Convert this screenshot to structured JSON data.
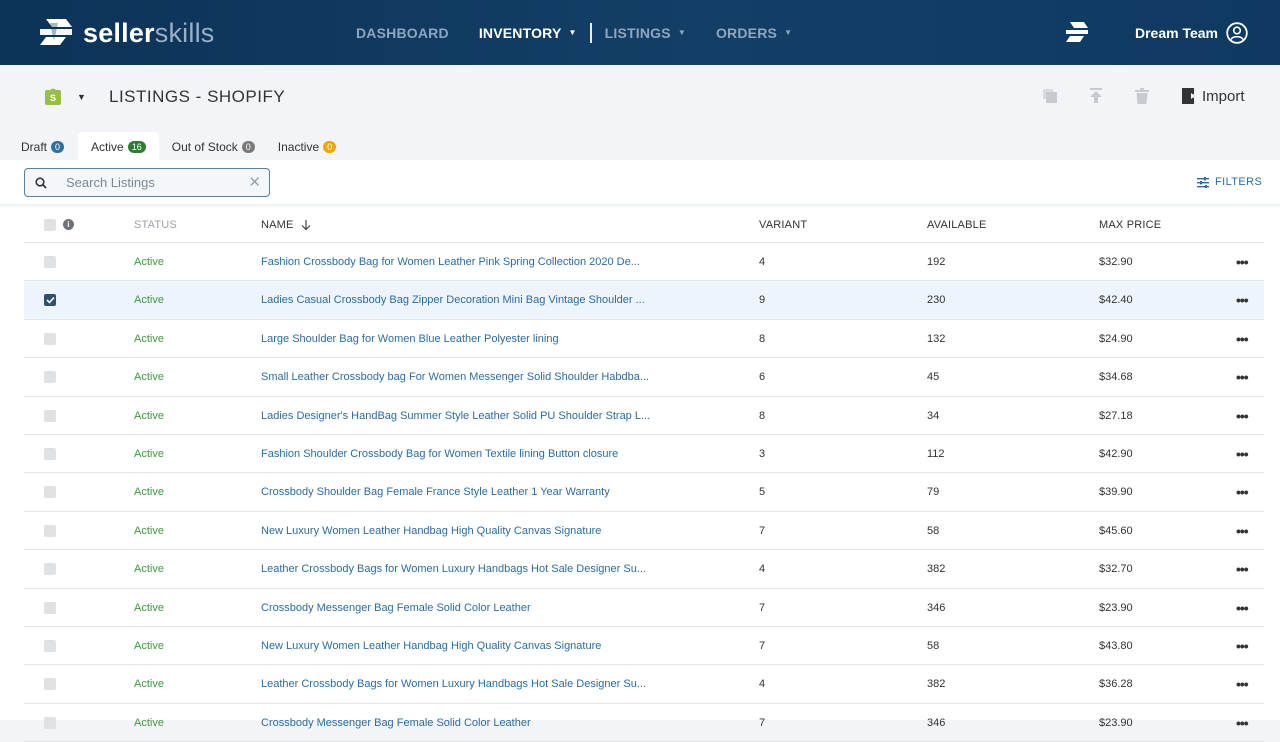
{
  "brand": {
    "name_bold": "seller",
    "name_light": "skills"
  },
  "nav": {
    "items": [
      {
        "label": "DASHBOARD",
        "dropdown": false,
        "active": false
      },
      {
        "label": "INVENTORY",
        "dropdown": true,
        "active": true
      },
      {
        "label": "LISTINGS",
        "dropdown": true,
        "active": false
      },
      {
        "label": "ORDERS",
        "dropdown": true,
        "active": false
      }
    ]
  },
  "user": {
    "name": "Dream Team"
  },
  "page": {
    "title": "LISTINGS - SHOPIFY",
    "import_label": "Import",
    "icons": [
      "shopify-icon",
      "duplicate-icon",
      "publish-icon",
      "delete-icon",
      "import-icon"
    ]
  },
  "tabs": [
    {
      "label": "Draft",
      "count": "0",
      "badge_color": "#2e6f9f",
      "active": false
    },
    {
      "label": "Active",
      "count": "16",
      "badge_color": "#2e7d32",
      "active": true
    },
    {
      "label": "Out of Stock",
      "count": "0",
      "badge_color": "#7a7a7a",
      "active": false
    },
    {
      "label": "Inactive",
      "count": "0",
      "badge_color": "#f0a500",
      "active": false
    }
  ],
  "search": {
    "placeholder": "Search Listings",
    "value": ""
  },
  "filters_label": "FILTERS",
  "table": {
    "columns": {
      "status": "STATUS",
      "name": "NAME",
      "variant": "VARIANT",
      "available": "AVAILABLE",
      "max_price": "MAX PRICE"
    },
    "rows": [
      {
        "status": "Active",
        "name": "Fashion Crossbody Bag for Women Leather Pink  Spring Collection 2020 De...",
        "variant": "4",
        "available": "192",
        "max_price": "$32.90",
        "selected": false
      },
      {
        "status": "Active",
        "name": "Ladies Casual Crossbody Bag Zipper Decoration Mini Bag Vintage Shoulder ...",
        "variant": "9",
        "available": "230",
        "max_price": "$42.40",
        "selected": true
      },
      {
        "status": "Active",
        "name": "Large Shoulder Bag for Women Blue Leather Polyester lining",
        "variant": "8",
        "available": "132",
        "max_price": "$24.90",
        "selected": false
      },
      {
        "status": "Active",
        "name": "Small Leather Crossbody bag For Women Messenger Solid Shoulder Habdba...",
        "variant": "6",
        "available": "45",
        "max_price": "$34.68",
        "selected": false
      },
      {
        "status": "Active",
        "name": " Ladies Designer's HandBag Summer Style Leather Solid PU Shoulder Strap L...",
        "variant": "8",
        "available": "34",
        "max_price": "$27.18",
        "selected": false
      },
      {
        "status": "Active",
        "name": "Fashion Shoulder Crossbody Bag for Women  Textile lining Button closure",
        "variant": "3",
        "available": "112",
        "max_price": "$42.90",
        "selected": false
      },
      {
        "status": "Active",
        "name": "Crossbody Shoulder Bag Female France Style Leather 1 Year Warranty",
        "variant": "5",
        "available": "79",
        "max_price": "$39.90",
        "selected": false
      },
      {
        "status": "Active",
        "name": "New Luxury Women Leather Handbag High Quality Canvas Signature",
        "variant": "7",
        "available": "58",
        "max_price": "$45.60",
        "selected": false
      },
      {
        "status": "Active",
        "name": "Leather Crossbody Bags for Women Luxury Handbags Hot Sale Designer Su...",
        "variant": "4",
        "available": "382",
        "max_price": "$32.70",
        "selected": false
      },
      {
        "status": "Active",
        "name": "Crossbody Messenger Bag Female Solid Color Leather",
        "variant": "7",
        "available": "346",
        "max_price": "$23.90",
        "selected": false
      },
      {
        "status": "Active",
        "name": "New Luxury Women Leather Handbag High Quality Canvas Signature",
        "variant": "7",
        "available": "58",
        "max_price": "$43.80",
        "selected": false
      },
      {
        "status": "Active",
        "name": "Leather Crossbody Bags for Women Luxury Handbags Hot Sale Designer Su...",
        "variant": "4",
        "available": "382",
        "max_price": "$36.28",
        "selected": false
      },
      {
        "status": "Active",
        "name": "Crossbody Messenger Bag Female Solid Color Leather",
        "variant": "7",
        "available": "346",
        "max_price": "$23.90",
        "selected": false
      }
    ]
  },
  "colors": {
    "topbar": "#0c3358",
    "link": "#2b6ca3",
    "status_active": "#3c9a3c",
    "selected_row": "#eef4fb"
  }
}
